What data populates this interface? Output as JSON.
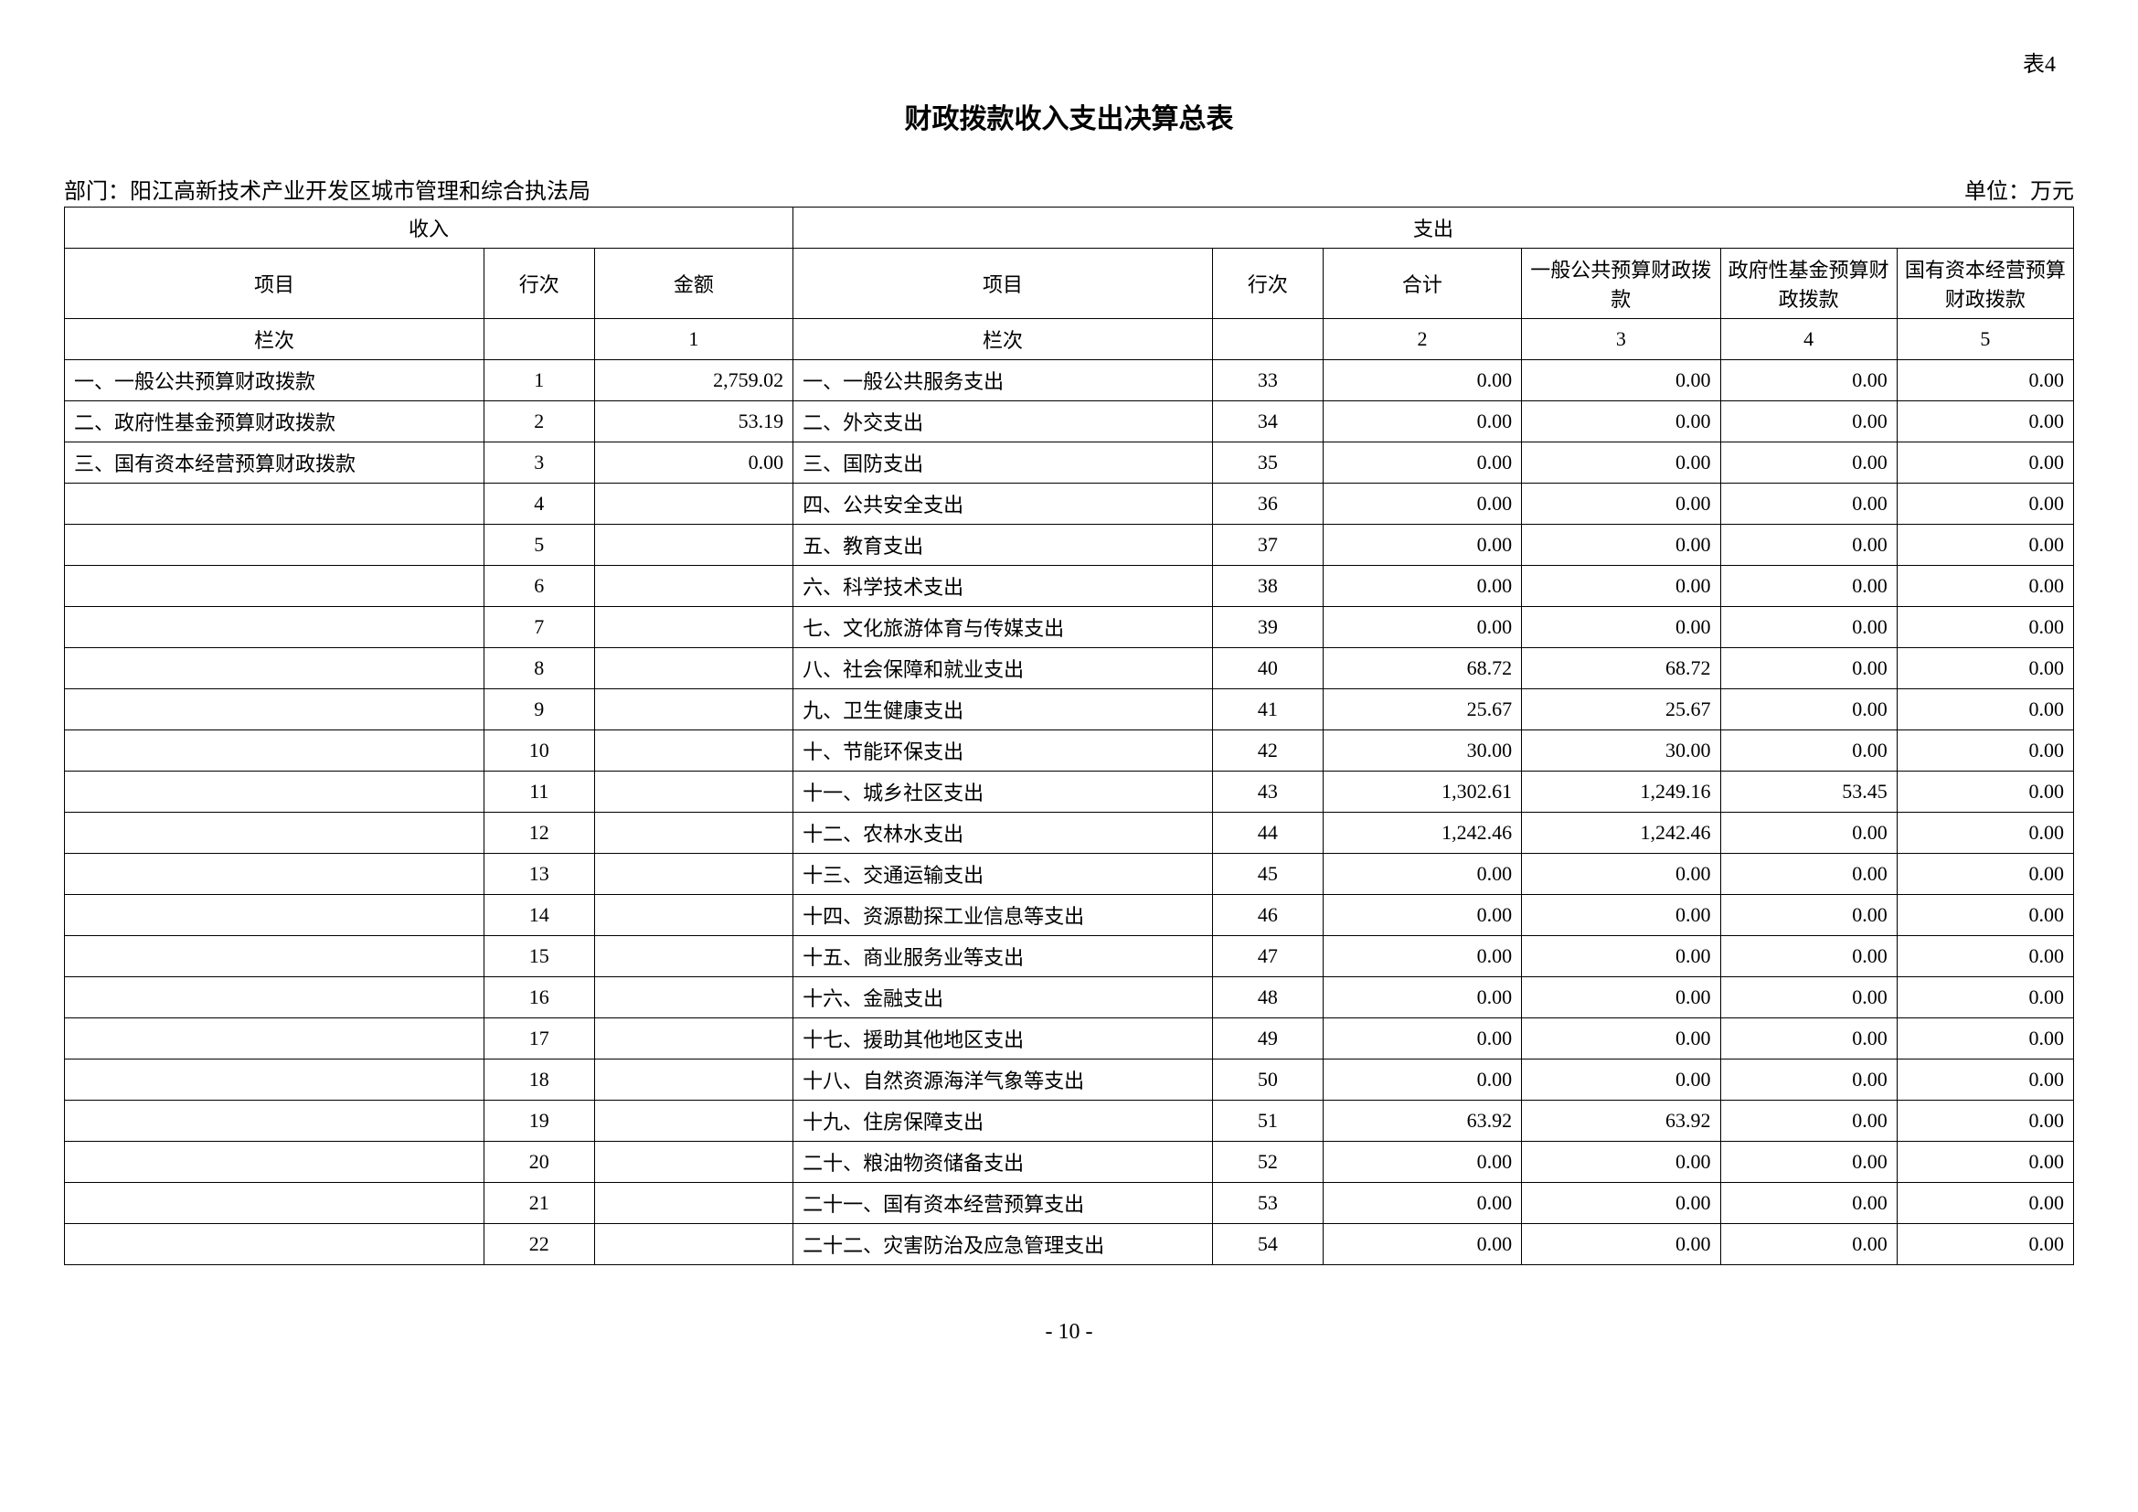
{
  "tableLabel": "表4",
  "title": "财政拨款收入支出决算总表",
  "departmentLabel": "部门：",
  "department": "阳江高新技术产业开发区城市管理和综合执法局",
  "unit": "单位：万元",
  "header": {
    "incomeGroup": "收入",
    "expenseGroup": "支出",
    "item": "项目",
    "rowNum": "行次",
    "amount": "金额",
    "total": "合计",
    "col1": "一般公共预算财政拨款",
    "col2": "政府性基金预算财政拨款",
    "col3": "国有资本经营预算财政拨款",
    "lanci": "栏次",
    "n1": "1",
    "n2": "2",
    "n3": "3",
    "n4": "4",
    "n5": "5"
  },
  "rows": [
    {
      "inItem": "一、一般公共预算财政拨款",
      "inNum": "1",
      "inAmt": "2,759.02",
      "exItem": "一、一般公共服务支出",
      "exNum": "33",
      "total": "0.00",
      "c1": "0.00",
      "c2": "0.00",
      "c3": "0.00"
    },
    {
      "inItem": "二、政府性基金预算财政拨款",
      "inNum": "2",
      "inAmt": "53.19",
      "exItem": "二、外交支出",
      "exNum": "34",
      "total": "0.00",
      "c1": "0.00",
      "c2": "0.00",
      "c3": "0.00"
    },
    {
      "inItem": "三、国有资本经营预算财政拨款",
      "inNum": "3",
      "inAmt": "0.00",
      "exItem": "三、国防支出",
      "exNum": "35",
      "total": "0.00",
      "c1": "0.00",
      "c2": "0.00",
      "c3": "0.00"
    },
    {
      "inItem": "",
      "inNum": "4",
      "inAmt": "",
      "exItem": "四、公共安全支出",
      "exNum": "36",
      "total": "0.00",
      "c1": "0.00",
      "c2": "0.00",
      "c3": "0.00"
    },
    {
      "inItem": "",
      "inNum": "5",
      "inAmt": "",
      "exItem": "五、教育支出",
      "exNum": "37",
      "total": "0.00",
      "c1": "0.00",
      "c2": "0.00",
      "c3": "0.00"
    },
    {
      "inItem": "",
      "inNum": "6",
      "inAmt": "",
      "exItem": "六、科学技术支出",
      "exNum": "38",
      "total": "0.00",
      "c1": "0.00",
      "c2": "0.00",
      "c3": "0.00"
    },
    {
      "inItem": "",
      "inNum": "7",
      "inAmt": "",
      "exItem": "七、文化旅游体育与传媒支出",
      "exNum": "39",
      "total": "0.00",
      "c1": "0.00",
      "c2": "0.00",
      "c3": "0.00"
    },
    {
      "inItem": "",
      "inNum": "8",
      "inAmt": "",
      "exItem": "八、社会保障和就业支出",
      "exNum": "40",
      "total": "68.72",
      "c1": "68.72",
      "c2": "0.00",
      "c3": "0.00"
    },
    {
      "inItem": "",
      "inNum": "9",
      "inAmt": "",
      "exItem": "九、卫生健康支出",
      "exNum": "41",
      "total": "25.67",
      "c1": "25.67",
      "c2": "0.00",
      "c3": "0.00"
    },
    {
      "inItem": "",
      "inNum": "10",
      "inAmt": "",
      "exItem": "十、节能环保支出",
      "exNum": "42",
      "total": "30.00",
      "c1": "30.00",
      "c2": "0.00",
      "c3": "0.00"
    },
    {
      "inItem": "",
      "inNum": "11",
      "inAmt": "",
      "exItem": "十一、城乡社区支出",
      "exNum": "43",
      "total": "1,302.61",
      "c1": "1,249.16",
      "c2": "53.45",
      "c3": "0.00"
    },
    {
      "inItem": "",
      "inNum": "12",
      "inAmt": "",
      "exItem": "十二、农林水支出",
      "exNum": "44",
      "total": "1,242.46",
      "c1": "1,242.46",
      "c2": "0.00",
      "c3": "0.00"
    },
    {
      "inItem": "",
      "inNum": "13",
      "inAmt": "",
      "exItem": "十三、交通运输支出",
      "exNum": "45",
      "total": "0.00",
      "c1": "0.00",
      "c2": "0.00",
      "c3": "0.00"
    },
    {
      "inItem": "",
      "inNum": "14",
      "inAmt": "",
      "exItem": "十四、资源勘探工业信息等支出",
      "exNum": "46",
      "total": "0.00",
      "c1": "0.00",
      "c2": "0.00",
      "c3": "0.00"
    },
    {
      "inItem": "",
      "inNum": "15",
      "inAmt": "",
      "exItem": "十五、商业服务业等支出",
      "exNum": "47",
      "total": "0.00",
      "c1": "0.00",
      "c2": "0.00",
      "c3": "0.00"
    },
    {
      "inItem": "",
      "inNum": "16",
      "inAmt": "",
      "exItem": "十六、金融支出",
      "exNum": "48",
      "total": "0.00",
      "c1": "0.00",
      "c2": "0.00",
      "c3": "0.00"
    },
    {
      "inItem": "",
      "inNum": "17",
      "inAmt": "",
      "exItem": "十七、援助其他地区支出",
      "exNum": "49",
      "total": "0.00",
      "c1": "0.00",
      "c2": "0.00",
      "c3": "0.00"
    },
    {
      "inItem": "",
      "inNum": "18",
      "inAmt": "",
      "exItem": "十八、自然资源海洋气象等支出",
      "exNum": "50",
      "total": "0.00",
      "c1": "0.00",
      "c2": "0.00",
      "c3": "0.00"
    },
    {
      "inItem": "",
      "inNum": "19",
      "inAmt": "",
      "exItem": "十九、住房保障支出",
      "exNum": "51",
      "total": "63.92",
      "c1": "63.92",
      "c2": "0.00",
      "c3": "0.00"
    },
    {
      "inItem": "",
      "inNum": "20",
      "inAmt": "",
      "exItem": "二十、粮油物资储备支出",
      "exNum": "52",
      "total": "0.00",
      "c1": "0.00",
      "c2": "0.00",
      "c3": "0.00"
    },
    {
      "inItem": "",
      "inNum": "21",
      "inAmt": "",
      "exItem": "二十一、国有资本经营预算支出",
      "exNum": "53",
      "total": "0.00",
      "c1": "0.00",
      "c2": "0.00",
      "c3": "0.00"
    },
    {
      "inItem": "",
      "inNum": "22",
      "inAmt": "",
      "exItem": "二十二、灾害防治及应急管理支出",
      "exNum": "54",
      "total": "0.00",
      "c1": "0.00",
      "c2": "0.00",
      "c3": "0.00"
    }
  ],
  "pageNum": "- 10 -"
}
